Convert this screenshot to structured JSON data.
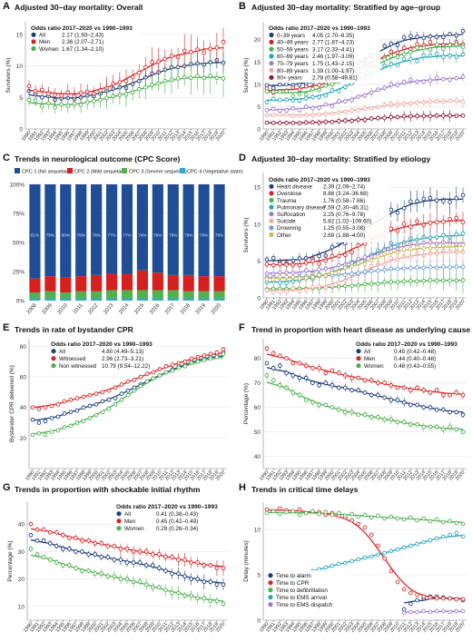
{
  "colors": {
    "navy": "#1f3f7a",
    "red": "#d62728",
    "green": "#4caf50",
    "panel_bg": "#ffffff",
    "grid": "#e6e6e6",
    "age_0_39": "#1f3f7a",
    "age_40_49": "#c62828",
    "age_50_59": "#4caf50",
    "age_60_69": "#26a6b8",
    "age_70_79": "#9b7bd1",
    "age_80_89": "#f2a7a0",
    "age_90p": "#8b1a3a",
    "cpc1": "#1f4e96",
    "cpc2": "#d62020",
    "cpc3": "#54b04a",
    "cpc4": "#2fa7c7",
    "drowning": "#6f9fd6",
    "other": "#c9b55a"
  },
  "years_full": [
    "1990",
    "1991",
    "1992",
    "1993",
    "1994",
    "1995",
    "1996",
    "1997",
    "1998",
    "1999",
    "2000",
    "2001",
    "2002",
    "2003",
    "2004",
    "2005",
    "2006",
    "2007",
    "2008",
    "2009",
    "2010",
    "2011",
    "2012",
    "2013",
    "2014",
    "2015",
    "2016",
    "2017",
    "2018",
    "2019",
    "2020"
  ],
  "chart_data": [
    {
      "panel": "A",
      "type": "line",
      "title": "Adjusted 30–day mortality: Overall",
      "ylabel": "Survivors (%)",
      "ylim": [
        0,
        17
      ],
      "yticks": [
        0,
        5,
        10,
        15
      ],
      "legend_title": "Odds ratio 2017–2020 vs 1990–1993",
      "series": [
        {
          "name": "All",
          "or": "2.17 (1.93–2.43)",
          "color_key": "navy",
          "values": [
            6.0,
            5.5,
            5.0,
            5.2,
            4.6,
            4.8,
            4.9,
            4.7,
            5.0,
            5.3,
            5.2,
            5.6,
            6.0,
            6.4,
            6.6,
            6.5,
            7.1,
            7.6,
            8.2,
            8.8,
            9.0,
            9.4,
            9.8,
            9.8,
            10.0,
            10.3,
            10.4,
            10.2,
            10.6,
            10.9,
            10.5
          ]
        },
        {
          "name": "Men",
          "or": "2.36 (2.07–2.71)",
          "color_key": "red",
          "values": [
            6.8,
            6.0,
            6.2,
            5.6,
            5.4,
            5.3,
            5.8,
            5.2,
            5.7,
            5.9,
            5.6,
            6.1,
            6.5,
            7.2,
            7.4,
            7.6,
            8.2,
            8.9,
            9.8,
            10.6,
            10.7,
            11.1,
            11.6,
            11.4,
            12.4,
            12.2,
            12.6,
            12.1,
            12.7,
            12.9,
            13.8
          ]
        },
        {
          "name": "Women",
          "or": "1.67 (1.34–2.10)",
          "color_key": "green",
          "values": [
            4.6,
            4.5,
            3.6,
            4.1,
            3.4,
            3.9,
            3.7,
            4.0,
            3.8,
            4.2,
            4.4,
            4.6,
            4.9,
            5.2,
            5.4,
            5.5,
            5.8,
            6.3,
            6.6,
            7.0,
            7.2,
            7.6,
            7.8,
            8.0,
            8.2,
            8.1,
            8.4,
            8.1,
            8.4,
            8.1,
            8.0
          ]
        }
      ]
    },
    {
      "panel": "B",
      "type": "line",
      "title": "Adjusted 30–day mortality: Stratified by age–group",
      "ylabel": "Survivors (%)",
      "ylim": [
        0,
        24
      ],
      "yticks": [
        0,
        5,
        10,
        15,
        20
      ],
      "legend_title": "Odds ratio 2017–2020 vs 1990–1993",
      "series": [
        {
          "name": "0–39 years",
          "or": "4.05 (2.70–6.35)",
          "color_key": "age_0_39",
          "start": 9.6,
          "end": 21.6
        },
        {
          "name": "40–49 years",
          "or": "2.77 (1.87–4.23)",
          "color_key": "age_40_49",
          "start": 8.6,
          "end": 19.6
        },
        {
          "name": "50–59 years",
          "or": "3.17 (2.33–4.41)",
          "color_key": "age_50_59",
          "start": 7.6,
          "end": 18.6
        },
        {
          "name": "60–69 years",
          "or": "2.46 (1.97–3.09)",
          "color_key": "age_60_69",
          "start": 6.2,
          "end": 16.6
        },
        {
          "name": "70–79 years",
          "or": "1.75 (1.43–2.15)",
          "color_key": "age_70_79",
          "start": 4.2,
          "end": 11.4
        },
        {
          "name": "80–89 years",
          "or": "1.39 (1.00–1.97)",
          "color_key": "age_80_89",
          "start": 3.0,
          "end": 6.2
        },
        {
          "name": "90+ years",
          "or": "2.78 (0.58–49.81)",
          "color_key": "age_90p",
          "start": 1.3,
          "end": 3.0
        }
      ]
    },
    {
      "panel": "C",
      "type": "bar",
      "title": "Trends in neurological outcome (CPC Score)",
      "ylabel": "",
      "yticks": [
        "0%",
        "25%",
        "50%",
        "75%",
        "100%"
      ],
      "categories": [
        "2008",
        "2009",
        "2010",
        "2011",
        "2012",
        "2013",
        "2014",
        "2015",
        "2016",
        "2017",
        "2018",
        "2019",
        "2020"
      ],
      "legend": [
        "CPC 1 (No sequelae)",
        "CPC 2 (Mild sequelae)",
        "CPC 3 (Severe sequelae)",
        "CPC 4 (Vegetative state)"
      ],
      "series": [
        {
          "name": "CPC 1 (No sequelae)",
          "color_key": "cpc1",
          "values": [
            81,
            79,
            80,
            79,
            78,
            77,
            77,
            74,
            76,
            78,
            78,
            79,
            79
          ]
        },
        {
          "name": "CPC 2 (Mild sequelae)",
          "color_key": "cpc2",
          "values": [
            12,
            13,
            13,
            13,
            14,
            14,
            14,
            17,
            15,
            13,
            14,
            13,
            13
          ]
        },
        {
          "name": "CPC 3 (Severe sequelae)",
          "color_key": "cpc3",
          "values": [
            5,
            6,
            5,
            6,
            6,
            7,
            7,
            7,
            7,
            7,
            6,
            6,
            6
          ]
        },
        {
          "name": "CPC 4 (Vegetative state)",
          "color_key": "cpc4",
          "values": [
            2,
            2,
            2,
            2,
            2,
            2,
            2,
            2,
            2,
            2,
            2,
            2,
            2
          ]
        }
      ],
      "bar_labels": [
        "81%",
        "79%",
        "80%",
        "79%",
        "78%",
        "77%",
        "77%",
        "74%",
        "76%",
        "78%",
        "78%",
        "79%",
        "79%"
      ]
    },
    {
      "panel": "D",
      "type": "line",
      "title": "Adjusted 30–day mortality: Stratified by etiology",
      "ylabel": "Survivors (%)",
      "ylim": [
        0,
        17
      ],
      "yticks": [
        0,
        5,
        10,
        15
      ],
      "legend_title": "Odds ratio 2017–2020 vs 1990–1993",
      "series": [
        {
          "name": "Heart disease",
          "or": "2.39 (2.09–2.74)",
          "color_key": "navy",
          "start": 5.0,
          "end": 13.6
        },
        {
          "name": "Overdose",
          "or": "8.88 (3.24–36.68)",
          "color_key": "red",
          "start": 4.2,
          "end": 10.6
        },
        {
          "name": "Trauma",
          "or": "1.76 (0.58–7.66)",
          "color_key": "green",
          "start": 1.2,
          "end": 2.4
        },
        {
          "name": "Pulmonary disease",
          "or": "7.59 (2.30–46.31)",
          "color_key": "age_60_69",
          "start": 2.2,
          "end": 8.6
        },
        {
          "name": "Suffocation",
          "or": "2.25 (0.76–9.78)",
          "color_key": "age_70_79",
          "start": 3.2,
          "end": 7.6
        },
        {
          "name": "Suicide",
          "or": "5.82 (1.02–109.60)",
          "color_key": "age_80_89",
          "start": 0.8,
          "end": 6.4
        },
        {
          "name": "Drowning",
          "or": "1.25 (0.55–3.08)",
          "color_key": "drowning",
          "start": 2.8,
          "end": 4.2
        },
        {
          "name": "Other",
          "or": "2.69 (1.88–4.00)",
          "color_key": "other",
          "start": 2.6,
          "end": 7.0
        }
      ]
    },
    {
      "panel": "E",
      "type": "line",
      "title": "Trends in rate of bystander CPR",
      "ylabel": "Bystander CPR delivered (%)",
      "ylim": [
        0,
        85
      ],
      "yticks": [
        20,
        40,
        60,
        80
      ],
      "legend_title": "Odds ratio 2017–2020 vs 1990–1993",
      "series": [
        {
          "name": "All",
          "or": "4.80 (4.49–5.13)",
          "color_key": "navy",
          "values": [
            32,
            30,
            31,
            33,
            34,
            36,
            37,
            38,
            40,
            41,
            42,
            44,
            45,
            46,
            49,
            51,
            53,
            55,
            57,
            59,
            61,
            63,
            65,
            67,
            68,
            70,
            71,
            72,
            73,
            74,
            76
          ]
        },
        {
          "name": "Witnessed",
          "or": "2.96 (2.73–3.21)",
          "color_key": "red",
          "values": [
            40,
            39,
            40,
            41,
            42,
            44,
            45,
            46,
            47,
            48,
            49,
            50,
            51,
            53,
            55,
            57,
            58,
            60,
            62,
            63,
            65,
            67,
            68,
            69,
            70,
            72,
            73,
            74,
            75,
            76,
            78
          ]
        },
        {
          "name": "Non witnessed",
          "or": "10.79 (9.54–12.22)",
          "color_key": "green",
          "values": [
            22,
            23,
            22,
            24,
            25,
            27,
            28,
            30,
            31,
            33,
            35,
            37,
            39,
            42,
            45,
            48,
            51,
            54,
            57,
            59,
            61,
            63,
            64,
            66,
            67,
            69,
            70,
            71,
            72,
            73,
            75
          ]
        }
      ]
    },
    {
      "panel": "F",
      "type": "line",
      "title": "Trend in proportion with heart disease as underlying cause",
      "ylabel": "Percentage (%)",
      "ylim": [
        35,
        88
      ],
      "yticks": [
        40,
        50,
        60,
        70,
        80
      ],
      "legend_title": "Odds ratio 2017–2020 vs 1990–1993",
      "series": [
        {
          "name": "All",
          "or": "0.45 (0.42–0.48)",
          "color_key": "navy",
          "values": [
            78,
            76,
            77,
            74,
            73,
            72,
            72,
            70,
            69,
            70,
            69,
            68,
            68,
            67,
            67,
            66,
            65,
            65,
            64,
            63,
            63,
            62,
            61,
            61,
            60,
            60,
            59,
            59,
            58,
            58,
            57
          ]
        },
        {
          "name": "Men",
          "or": "0.44 (0.40–0.48)",
          "color_key": "red",
          "values": [
            84,
            82,
            81,
            80,
            78,
            78,
            77,
            76,
            76,
            74,
            75,
            74,
            73,
            72,
            72,
            71,
            71,
            70,
            70,
            69,
            68,
            68,
            67,
            68,
            67,
            66,
            67,
            65,
            65,
            66,
            65
          ]
        },
        {
          "name": "Women",
          "or": "0.48 (0.43–0.55)",
          "color_key": "green",
          "values": [
            73,
            71,
            69,
            68,
            66,
            65,
            63,
            62,
            61,
            61,
            60,
            59,
            58,
            58,
            57,
            57,
            56,
            56,
            55,
            55,
            54,
            54,
            53,
            53,
            52,
            52,
            52,
            51,
            52,
            51,
            50
          ]
        }
      ]
    },
    {
      "panel": "G",
      "type": "line",
      "title": "Trends in proportion with shockable initial rhythm",
      "ylabel": "Percentage (%)",
      "ylim": [
        5,
        48
      ],
      "yticks": [
        10,
        20,
        30,
        40
      ],
      "legend_title": "Odds ratio 2017–2020 vs 1990–1993",
      "series": [
        {
          "name": "All",
          "or": "0.41 (0.38–0.43)",
          "color_key": "navy",
          "values": [
            36,
            34,
            34,
            33,
            32,
            31,
            31,
            30,
            30,
            29,
            29,
            28,
            28,
            27,
            27,
            26,
            26,
            26,
            25,
            25,
            24,
            23,
            22,
            22,
            21,
            20,
            20,
            19,
            19,
            18,
            18
          ]
        },
        {
          "name": "Men",
          "or": "0.45 (0.42–0.49)",
          "color_key": "red",
          "values": [
            40,
            38,
            38,
            37,
            37,
            36,
            35,
            35,
            34,
            34,
            33,
            33,
            32,
            32,
            31,
            31,
            30,
            30,
            30,
            29,
            29,
            28,
            28,
            27,
            27,
            26,
            26,
            25,
            25,
            24,
            24
          ]
        },
        {
          "name": "Women",
          "or": "0.29 (0.26–0.34)",
          "color_key": "green",
          "values": [
            31,
            29,
            28,
            27,
            26,
            25,
            25,
            24,
            23,
            23,
            22,
            22,
            21,
            21,
            20,
            20,
            19,
            19,
            18,
            17,
            17,
            16,
            15,
            15,
            14,
            14,
            13,
            13,
            12,
            12,
            11
          ]
        }
      ]
    },
    {
      "panel": "H",
      "type": "line",
      "title": "Trends in critical time delays",
      "ylabel": "Delay (minutes)",
      "ylim": [
        0,
        13
      ],
      "yticks": [
        0,
        5,
        10
      ],
      "legend": [
        "Time to alarm",
        "Time to CPR",
        "Time to defibrillation",
        "Time to EMS arrival",
        "Time to EMS dispatch"
      ],
      "series": [
        {
          "name": "Time to alarm",
          "color_key": "navy",
          "values": [
            null,
            null,
            null,
            null,
            null,
            null,
            null,
            null,
            null,
            null,
            null,
            null,
            null,
            null,
            null,
            null,
            null,
            null,
            null,
            null,
            null,
            1.2,
            1.8,
            2.2,
            2.4,
            2.6,
            2.6,
            2.5,
            2.4,
            2.3,
            2.2
          ]
        },
        {
          "name": "Time to CPR",
          "color_key": "red",
          "values": [
            12.2,
            12.0,
            12.3,
            12.1,
            12.0,
            12.2,
            11.8,
            12.0,
            11.9,
            11.6,
            11.8,
            11.5,
            11.3,
            11.0,
            10.6,
            10.2,
            9.4,
            8.2,
            6.8,
            5.4,
            4.2,
            3.4,
            3.0,
            2.8,
            2.6,
            2.5,
            2.4,
            2.4,
            2.4,
            2.3,
            2.3
          ]
        },
        {
          "name": "Time to defibrillation",
          "color_key": "green",
          "values": [
            11.8,
            12.0,
            11.7,
            11.9,
            12.0,
            11.6,
            11.8,
            12.0,
            11.7,
            11.9,
            11.6,
            11.8,
            11.5,
            11.7,
            11.4,
            11.6,
            11.3,
            11.5,
            11.2,
            11.4,
            11.2,
            11.1,
            11.3,
            11.0,
            11.2,
            10.9,
            11.1,
            10.8,
            10.9,
            10.7,
            10.6
          ]
        },
        {
          "name": "Time to EMS arrival",
          "color_key": "age_60_69",
          "values": [
            3.4,
            4.4,
            4.2,
            4.6,
            4.8,
            5.0,
            5.2,
            5.4,
            5.6,
            5.8,
            6.0,
            6.2,
            6.3,
            6.5,
            6.7,
            6.9,
            7.0,
            7.2,
            7.4,
            7.6,
            7.8,
            8.0,
            8.2,
            8.4,
            8.6,
            8.8,
            9.0,
            9.2,
            9.4,
            9.6,
            9.2
          ]
        },
        {
          "name": "Time to EMS dispatch",
          "color_key": "age_70_79",
          "values": [
            null,
            null,
            null,
            null,
            null,
            null,
            null,
            null,
            null,
            null,
            null,
            null,
            null,
            null,
            null,
            null,
            null,
            null,
            null,
            null,
            null,
            0.8,
            0.9,
            0.9,
            1.0,
            0.9,
            1.0,
            1.0,
            0.9,
            1.0,
            1.0
          ]
        }
      ]
    }
  ]
}
